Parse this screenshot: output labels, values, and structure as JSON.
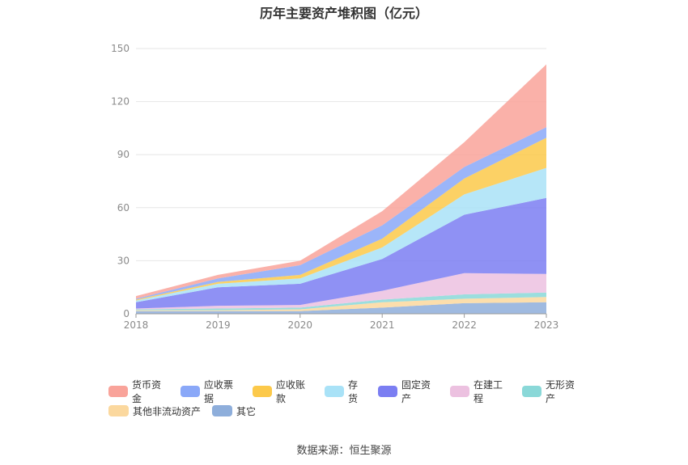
{
  "chart_data": {
    "type": "area",
    "stacked": true,
    "title": "历年主要资产堆积图（亿元）",
    "x": [
      "2018",
      "2019",
      "2020",
      "2021",
      "2022",
      "2023"
    ],
    "ylim": [
      0,
      150
    ],
    "yticks": [
      0,
      30,
      60,
      90,
      120,
      150
    ],
    "grid": true,
    "legend_position": "bottom",
    "series": [
      {
        "name": "其它",
        "color": "#8eaedb",
        "values": [
          1.5,
          1.5,
          1.5,
          3.5,
          6,
          6.5
        ]
      },
      {
        "name": "其他非流动资产",
        "color": "#fbd89e",
        "values": [
          0.5,
          0.5,
          1.0,
          3.0,
          2.5,
          3.0
        ]
      },
      {
        "name": "无形资产",
        "color": "#8ad8d8",
        "values": [
          0.5,
          1.0,
          1.0,
          1.5,
          2.5,
          2.5
        ]
      },
      {
        "name": "在建工程",
        "color": "#ecc1e0",
        "values": [
          0.5,
          1.5,
          1.5,
          5.0,
          12.0,
          10.5
        ]
      },
      {
        "name": "固定资产",
        "color": "#7b7ef2",
        "values": [
          3.5,
          10.5,
          12.0,
          18.0,
          33.0,
          43.0
        ]
      },
      {
        "name": "存货",
        "color": "#a9e2f7",
        "values": [
          1.0,
          2.0,
          3.0,
          6.5,
          11.5,
          17.0
        ]
      },
      {
        "name": "应收账款",
        "color": "#fcc94a",
        "values": [
          0.5,
          1.0,
          2.0,
          5.0,
          9.0,
          17.0
        ]
      },
      {
        "name": "应收票据",
        "color": "#8aa8f8",
        "values": [
          0.5,
          2.0,
          5.5,
          7.5,
          6.5,
          6.0
        ]
      },
      {
        "name": "货币资金",
        "color": "#f9a39a",
        "values": [
          1.5,
          2.0,
          2.5,
          8.0,
          14.0,
          35.5
        ]
      }
    ]
  },
  "legend": {
    "row1": [
      "货币资金",
      "应收票据",
      "应收账款",
      "存货",
      "固定资产",
      "在建工程",
      "无形资产"
    ],
    "row2": [
      "其他非流动资产",
      "其它"
    ]
  },
  "source": "数据来源：恒生聚源"
}
